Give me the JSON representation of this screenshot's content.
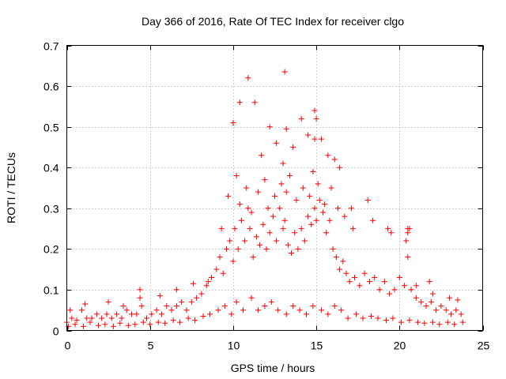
{
  "chart_data": {
    "type": "scatter",
    "title": "Day 366 of 2016, Rate Of TEC Index for receiver clgo",
    "xlabel": "GPS time / hours",
    "ylabel": "ROTI / TECUs",
    "xlim": [
      0,
      25
    ],
    "ylim": [
      0,
      0.7
    ],
    "xticks": [
      0,
      5,
      10,
      15,
      20,
      25
    ],
    "xtick_labels": [
      "0",
      "5",
      "10",
      "15",
      "20",
      "25"
    ],
    "yticks": [
      0,
      0.1,
      0.2,
      0.3,
      0.4,
      0.5,
      0.6,
      0.7
    ],
    "ytick_labels": [
      "0",
      "0.1",
      "0.2",
      "0.3",
      "0.4",
      "0.5",
      "0.6",
      "0.7"
    ],
    "grid": true,
    "marker": "+",
    "color": "#ff0000",
    "series": [
      {
        "name": "ROTI",
        "x": [
          0.0,
          0.3,
          0.6,
          0.9,
          1.2,
          1.5,
          1.8,
          2.1,
          2.4,
          2.7,
          3.0,
          3.3,
          3.6,
          3.9,
          4.2,
          4.5,
          4.8,
          5.1,
          5.4,
          5.7,
          6.0,
          6.3,
          6.6,
          6.9,
          7.2,
          7.5,
          7.8,
          8.1,
          8.4,
          8.7,
          9.0,
          9.2,
          9.4,
          9.6,
          9.8,
          10.0,
          10.1,
          10.3,
          10.5,
          10.7,
          10.9,
          11.0,
          11.2,
          11.4,
          11.6,
          11.8,
          12.0,
          12.2,
          12.4,
          12.6,
          12.8,
          13.0,
          13.1,
          13.3,
          13.5,
          13.7,
          13.9,
          14.1,
          14.3,
          14.5,
          14.7,
          14.9,
          15.0,
          15.2,
          15.4,
          15.6,
          15.8,
          16.0,
          16.2,
          16.4,
          16.6,
          16.8,
          17.0,
          17.3,
          17.6,
          17.9,
          18.2,
          18.5,
          18.8,
          19.1,
          19.4,
          19.7,
          20.0,
          20.3,
          20.5,
          20.7,
          21.0,
          21.3,
          21.6,
          21.9,
          22.2,
          22.5,
          22.8,
          23.1,
          23.4,
          23.7,
          0.1,
          0.5,
          1.0,
          1.4,
          1.9,
          2.3,
          2.8,
          3.2,
          3.7,
          4.1,
          4.6,
          5.0,
          5.5,
          5.9,
          6.4,
          6.8,
          7.3,
          7.7,
          8.2,
          8.6,
          9.1,
          9.5,
          9.9,
          10.2,
          10.6,
          11.1,
          11.5,
          11.9,
          12.3,
          12.7,
          13.2,
          13.6,
          14.0,
          14.4,
          14.8,
          15.3,
          15.7,
          16.1,
          16.5,
          16.9,
          17.4,
          17.8,
          18.3,
          18.7,
          19.2,
          19.6,
          20.1,
          20.6,
          21.1,
          21.5,
          22.0,
          22.4,
          22.9,
          23.3,
          23.8,
          9.3,
          9.7,
          10.2,
          10.4,
          10.8,
          11.1,
          11.5,
          11.9,
          12.1,
          12.5,
          12.9,
          13.2,
          13.4,
          13.8,
          14.2,
          14.6,
          14.8,
          15.1,
          15.5,
          15.9,
          16.3,
          16.7,
          17.2,
          18.4,
          19.5,
          20.4,
          20.6,
          21.8,
          10.0,
          10.4,
          10.9,
          11.3,
          11.7,
          12.2,
          12.6,
          13.0,
          13.1,
          13.2,
          13.6,
          14.1,
          14.5,
          14.9,
          14.9,
          15.0,
          15.3,
          15.7,
          16.1,
          16.4,
          17.1,
          18.1,
          19.3,
          20.5,
          20.5,
          0.2,
          1.1,
          2.5,
          3.4,
          4.4,
          4.4,
          5.6,
          6.6,
          7.6,
          8.5,
          21.0,
          22.0,
          23.0,
          23.5
        ],
        "y": [
          0.02,
          0.03,
          0.025,
          0.05,
          0.03,
          0.03,
          0.04,
          0.03,
          0.04,
          0.03,
          0.04,
          0.03,
          0.05,
          0.04,
          0.04,
          0.06,
          0.03,
          0.04,
          0.05,
          0.04,
          0.06,
          0.05,
          0.06,
          0.07,
          0.05,
          0.07,
          0.08,
          0.09,
          0.11,
          0.13,
          0.15,
          0.18,
          0.14,
          0.2,
          0.22,
          0.17,
          0.25,
          0.2,
          0.27,
          0.22,
          0.3,
          0.25,
          0.18,
          0.23,
          0.21,
          0.26,
          0.2,
          0.24,
          0.28,
          0.22,
          0.3,
          0.25,
          0.27,
          0.21,
          0.19,
          0.24,
          0.2,
          0.25,
          0.22,
          0.28,
          0.26,
          0.3,
          0.27,
          0.32,
          0.29,
          0.24,
          0.27,
          0.2,
          0.18,
          0.15,
          0.17,
          0.14,
          0.12,
          0.13,
          0.11,
          0.14,
          0.12,
          0.13,
          0.1,
          0.12,
          0.09,
          0.1,
          0.13,
          0.11,
          0.18,
          0.1,
          0.08,
          0.07,
          0.06,
          0.07,
          0.05,
          0.06,
          0.05,
          0.04,
          0.05,
          0.04,
          0.01,
          0.015,
          0.01,
          0.02,
          0.012,
          0.015,
          0.01,
          0.018,
          0.012,
          0.015,
          0.02,
          0.015,
          0.02,
          0.018,
          0.025,
          0.02,
          0.03,
          0.025,
          0.035,
          0.04,
          0.05,
          0.06,
          0.04,
          0.07,
          0.05,
          0.08,
          0.05,
          0.06,
          0.07,
          0.05,
          0.04,
          0.06,
          0.05,
          0.04,
          0.06,
          0.05,
          0.04,
          0.06,
          0.05,
          0.03,
          0.04,
          0.03,
          0.035,
          0.03,
          0.025,
          0.03,
          0.02,
          0.025,
          0.02,
          0.018,
          0.02,
          0.015,
          0.02,
          0.015,
          0.02,
          0.25,
          0.33,
          0.38,
          0.31,
          0.35,
          0.29,
          0.34,
          0.37,
          0.3,
          0.33,
          0.36,
          0.34,
          0.38,
          0.32,
          0.35,
          0.33,
          0.39,
          0.36,
          0.31,
          0.35,
          0.3,
          0.28,
          0.25,
          0.27,
          0.24,
          0.22,
          0.25,
          0.12,
          0.51,
          0.56,
          0.62,
          0.56,
          0.43,
          0.5,
          0.46,
          0.41,
          0.635,
          0.495,
          0.45,
          0.52,
          0.48,
          0.47,
          0.54,
          0.52,
          0.47,
          0.43,
          0.42,
          0.4,
          0.3,
          0.32,
          0.25,
          0.25,
          0.24,
          0.05,
          0.065,
          0.07,
          0.06,
          0.08,
          0.1,
          0.085,
          0.1,
          0.115,
          0.12,
          0.11,
          0.09,
          0.08,
          0.075
        ]
      }
    ]
  }
}
